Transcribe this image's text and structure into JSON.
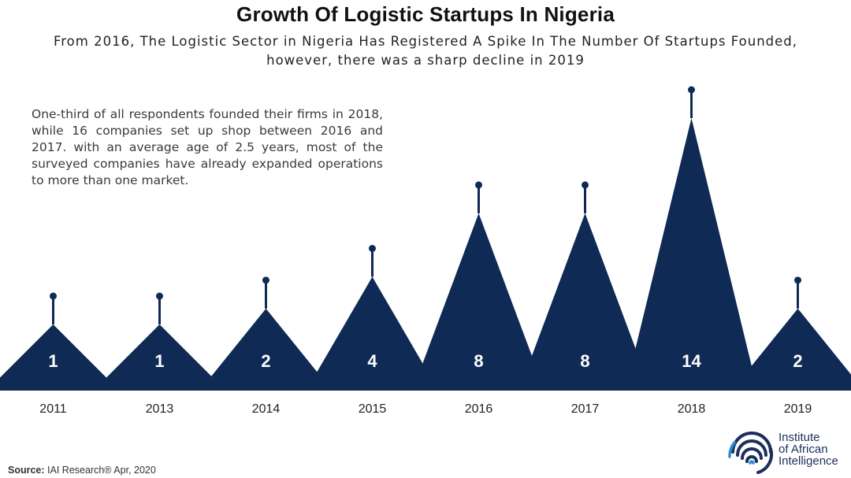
{
  "title": "Growth Of Logistic Startups In Nigeria",
  "subtitle_line1": "From 2016, The Logistic Sector in Nigeria Has Registered A Spike In The Number Of Startups Founded,",
  "subtitle_line2": "however, there was a sharp decline in 2019",
  "note": "One-third of all respondents founded their firms in 2018, while 16 companies set up shop between 2016 and 2017. with an average age of 2.5 years, most of the surveyed companies have already expanded operations to more than one market.",
  "source_label": "Source:",
  "source_text": "IAI Research® Apr, 2020",
  "logo": {
    "line1": "Institute",
    "line2": "of African",
    "line3": "Intelligence",
    "icon": "fingerprint-wave-icon"
  },
  "colors": {
    "peak": "#0e2a55",
    "logo": "#1c2f5c",
    "logo_accent": "#2a8fd6"
  },
  "chart_data": {
    "type": "bar",
    "mark": "triangle-peak",
    "categories": [
      "2011",
      "2013",
      "2014",
      "2015",
      "2016",
      "2017",
      "2018",
      "2019"
    ],
    "values": [
      1,
      1,
      2,
      4,
      8,
      8,
      14,
      2
    ],
    "data_labels": [
      "1",
      "1",
      "2",
      "4",
      "8",
      "8",
      "14",
      "2"
    ],
    "title": "Growth Of Logistic Startups In Nigeria",
    "xlabel": "",
    "ylabel": "",
    "grid": false
  }
}
